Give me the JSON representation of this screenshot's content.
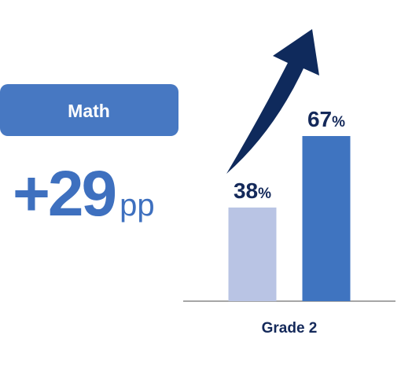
{
  "chart_data": {
    "type": "bar",
    "badge": "Math",
    "headline": {
      "value": "+29",
      "unit": "pp"
    },
    "xlabel": "Grade 2",
    "values": [
      38,
      67
    ],
    "value_labels": [
      "38%",
      "67%"
    ],
    "colors": [
      "#b9c4e4",
      "#3f74c0"
    ],
    "badge_color": "#4778c2",
    "headline_color": "#3e70bf",
    "label_color": "#14295a",
    "arrow_color": "#0f2a5c"
  }
}
